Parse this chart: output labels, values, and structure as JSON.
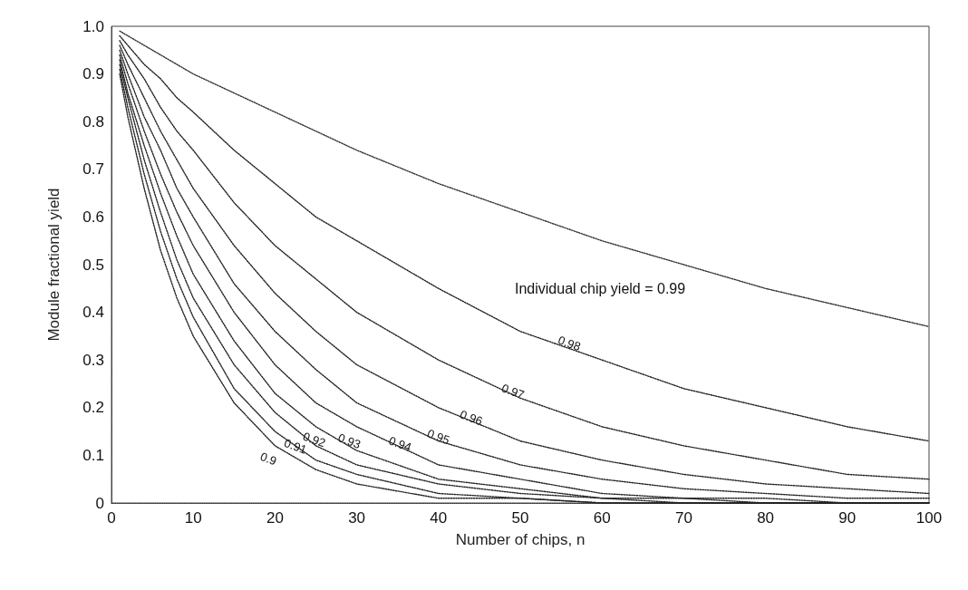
{
  "chart_data": {
    "type": "line",
    "xlabel": "Number of chips, n",
    "ylabel": "Module fractional yield",
    "x": [
      1,
      2,
      4,
      6,
      8,
      10,
      15,
      20,
      25,
      30,
      40,
      50,
      60,
      70,
      80,
      90,
      100
    ],
    "series": [
      {
        "color": "#333333",
        "values": [
          0.99,
          0.98,
          0.96,
          0.94,
          0.92,
          0.9,
          0.86,
          0.82,
          0.78,
          0.74,
          0.67,
          0.61,
          0.55,
          0.5,
          0.45,
          0.41,
          0.37
        ]
      },
      {
        "color": "#222222",
        "values": [
          0.98,
          0.96,
          0.92,
          0.89,
          0.85,
          0.82,
          0.74,
          0.67,
          0.6,
          0.55,
          0.45,
          0.36,
          0.3,
          0.24,
          0.2,
          0.16,
          0.13
        ]
      },
      {
        "color": "#222222",
        "values": [
          0.97,
          0.94,
          0.89,
          0.83,
          0.78,
          0.74,
          0.63,
          0.54,
          0.47,
          0.4,
          0.3,
          0.22,
          0.16,
          0.12,
          0.09,
          0.06,
          0.05
        ]
      },
      {
        "color": "#222222",
        "values": [
          0.96,
          0.92,
          0.85,
          0.78,
          0.72,
          0.66,
          0.54,
          0.44,
          0.36,
          0.29,
          0.2,
          0.13,
          0.09,
          0.06,
          0.04,
          0.03,
          0.02
        ]
      },
      {
        "color": "#222222",
        "values": [
          0.95,
          0.9,
          0.81,
          0.74,
          0.66,
          0.6,
          0.46,
          0.36,
          0.28,
          0.21,
          0.13,
          0.08,
          0.05,
          0.03,
          0.02,
          0.01,
          0.01
        ]
      },
      {
        "color": "#222222",
        "values": [
          0.94,
          0.88,
          0.78,
          0.69,
          0.61,
          0.54,
          0.4,
          0.29,
          0.21,
          0.16,
          0.08,
          0.05,
          0.02,
          0.01,
          0.01,
          0,
          0
        ]
      },
      {
        "color": "#222222",
        "values": [
          0.93,
          0.86,
          0.75,
          0.65,
          0.56,
          0.48,
          0.34,
          0.23,
          0.16,
          0.11,
          0.05,
          0.03,
          0.01,
          0.01,
          0,
          0,
          0
        ]
      },
      {
        "color": "#222222",
        "values": [
          0.92,
          0.85,
          0.72,
          0.61,
          0.51,
          0.43,
          0.29,
          0.19,
          0.12,
          0.08,
          0.04,
          0.02,
          0.01,
          0,
          0,
          0,
          0
        ]
      },
      {
        "color": "#222222",
        "values": [
          0.91,
          0.83,
          0.69,
          0.57,
          0.47,
          0.39,
          0.24,
          0.15,
          0.09,
          0.06,
          0.02,
          0.01,
          0,
          0,
          0,
          0,
          0
        ]
      },
      {
        "color": "#222222",
        "values": [
          0.9,
          0.81,
          0.66,
          0.53,
          0.43,
          0.35,
          0.21,
          0.12,
          0.07,
          0.04,
          0.01,
          0.01,
          0,
          0,
          0,
          0,
          0
        ]
      }
    ],
    "annotations": [
      "Individual chip yield = 0.99",
      {
        "text": "0.98",
        "x": 56,
        "y": 0.335
      },
      {
        "text": "0.97",
        "x": 49.1,
        "y": 0.234
      },
      {
        "text": "0.96",
        "x": 44,
        "y": 0.179
      },
      {
        "text": "0.95",
        "x": 40,
        "y": 0.139
      },
      {
        "text": "0.94",
        "x": 35.3,
        "y": 0.124
      },
      {
        "text": "0.93",
        "x": 29.1,
        "y": 0.13
      },
      {
        "text": "0.92",
        "x": 24.8,
        "y": 0.133
      },
      {
        "text": "0.91",
        "x": 22.5,
        "y": 0.119
      },
      {
        "text": "0.9",
        "x": 19.2,
        "y": 0.093
      }
    ],
    "xlim": [
      0,
      100
    ],
    "xticks": [
      0,
      10,
      20,
      30,
      40,
      50,
      60,
      70,
      80,
      90,
      100
    ],
    "ylim": [
      0,
      1
    ],
    "yticks": [
      0,
      0.1,
      0.2,
      0.3,
      0.4,
      0.5,
      0.6,
      0.7,
      0.8,
      0.9,
      {
        "value": 1,
        "label": "1.0"
      }
    ],
    "grid": false,
    "marker": "none",
    "line_style": "dotted"
  }
}
